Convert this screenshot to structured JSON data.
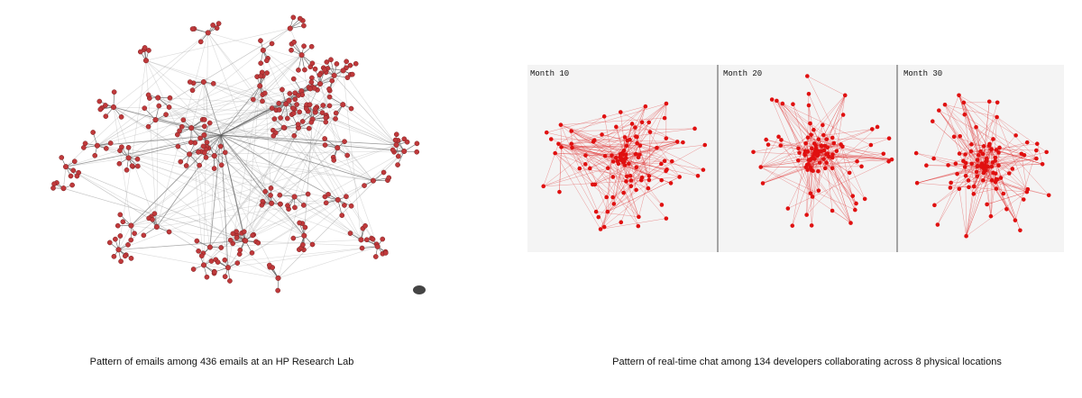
{
  "left_panel": {
    "caption": "Pattern of emails among 436 emails at an HP Research Lab"
  },
  "right_panel": {
    "caption": "Pattern of real-time chat among 134 developers collaborating across 8 physical locations",
    "frames": [
      {
        "label": "Month 10"
      },
      {
        "label": "Month 20"
      },
      {
        "label": "Month 30"
      }
    ]
  }
}
